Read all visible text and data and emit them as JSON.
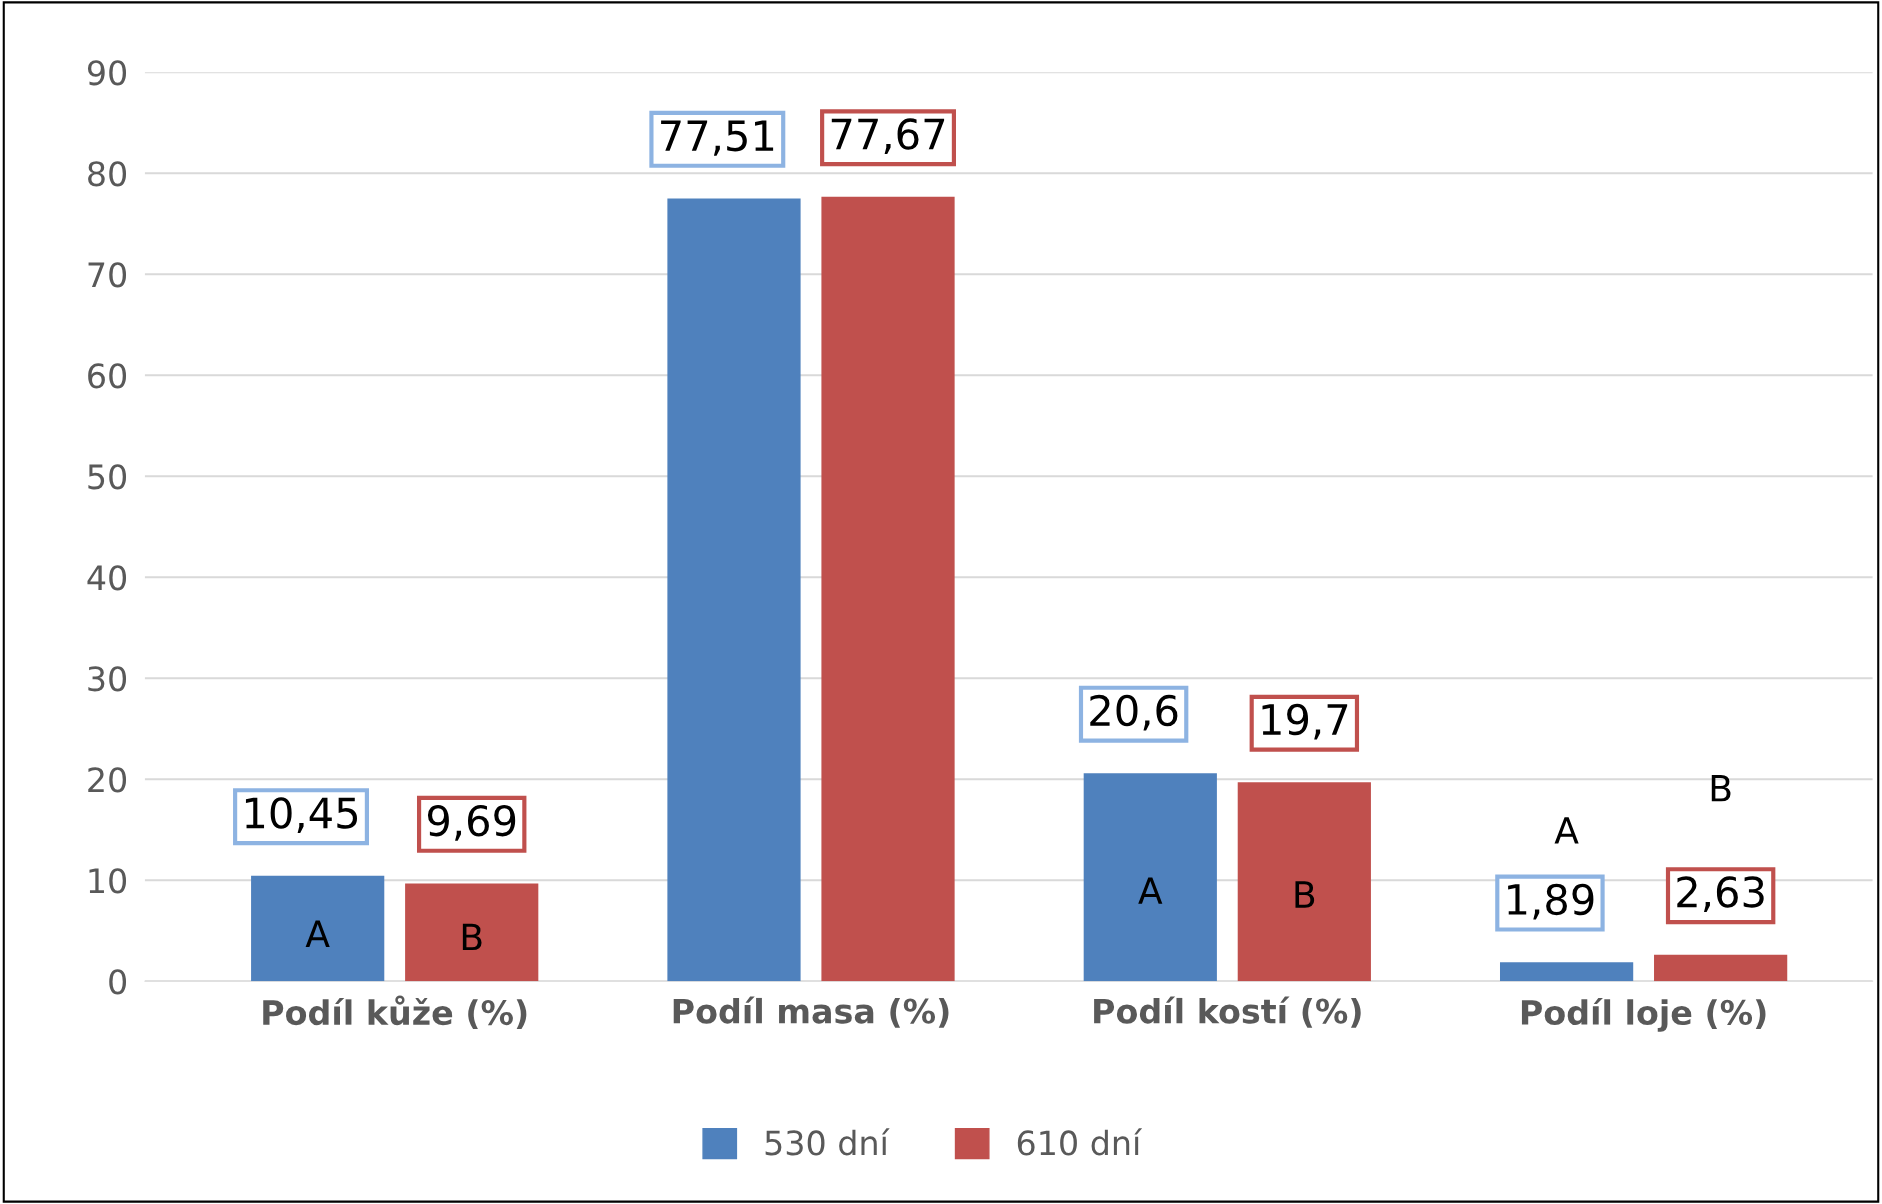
{
  "chart_data": {
    "type": "bar",
    "categories": [
      "Podíl kůže (%)",
      "Podíl masa (%)",
      "Podíl kostí (%)",
      "Podíl loje (%)"
    ],
    "series": [
      {
        "name": "530 dní",
        "color": "#4f81bd",
        "values": [
          10.45,
          77.51,
          20.6,
          1.89
        ],
        "value_labels": [
          "10,45",
          "77,51",
          "20,6",
          "1,89"
        ]
      },
      {
        "name": "610 dní",
        "color": "#c0504d",
        "values": [
          9.69,
          77.67,
          19.7,
          2.63
        ],
        "value_labels": [
          "9,69",
          "77,67",
          "19,7",
          "2,63"
        ]
      }
    ],
    "annotations": [
      "A",
      "B",
      null,
      null,
      "A",
      "B",
      "A",
      "B"
    ],
    "ylim": [
      0,
      90
    ],
    "yticks": [
      0,
      10,
      20,
      30,
      40,
      50,
      60,
      70,
      80,
      90
    ],
    "grid": "y",
    "legend": "bottom"
  }
}
